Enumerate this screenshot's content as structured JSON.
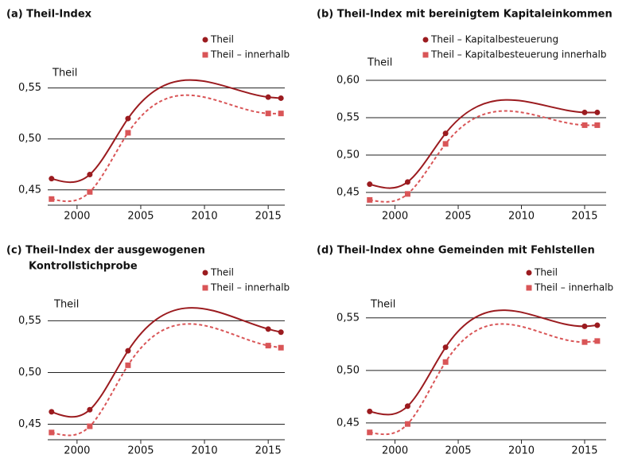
{
  "chart_data": [
    {
      "type": "line",
      "title": "(a) Theil-Index",
      "ylabel": "Theil",
      "x": [
        1998,
        2001,
        2004,
        2015,
        2016
      ],
      "xlim": [
        1997.7,
        2016.3
      ],
      "xticks": [
        2000,
        2005,
        2010,
        2015
      ],
      "ylim": [
        0.435,
        0.57
      ],
      "yticks": [
        {
          "value": 0.45,
          "label": "0,45"
        },
        {
          "value": 0.5,
          "label": "0,50"
        },
        {
          "value": 0.55,
          "label": "0,55"
        }
      ],
      "grid": true,
      "series": [
        {
          "name": "Theil",
          "color": "#9b1b1f",
          "values": [
            0.461,
            0.465,
            0.52,
            0.541,
            0.54
          ]
        },
        {
          "name": "Theil – innerhalb",
          "color": "#d95557",
          "values": [
            0.441,
            0.448,
            0.506,
            0.525,
            0.525
          ]
        }
      ]
    },
    {
      "type": "line",
      "title": "(b) Theil-Index mit bereinigtem Kapitaleinkommen",
      "ylabel": "Theil",
      "x": [
        1998,
        2001,
        2004,
        2015,
        2016
      ],
      "xlim": [
        1997.7,
        2016.7
      ],
      "xticks": [
        2000,
        2005,
        2010,
        2015
      ],
      "ylim": [
        0.433,
        0.617
      ],
      "yticks": [
        {
          "value": 0.45,
          "label": "0,45"
        },
        {
          "value": 0.5,
          "label": "0,50"
        },
        {
          "value": 0.55,
          "label": "0,55"
        },
        {
          "value": 0.6,
          "label": "0,60"
        }
      ],
      "grid": true,
      "series": [
        {
          "name": "Theil – Kapitalbesteuerung",
          "color": "#9b1b1f",
          "values": [
            0.461,
            0.464,
            0.529,
            0.557,
            0.557
          ]
        },
        {
          "name": "Theil – Kapitalbesteuerung innerhalb",
          "color": "#d95557",
          "values": [
            0.44,
            0.448,
            0.515,
            0.54,
            0.54
          ]
        }
      ]
    },
    {
      "type": "line",
      "title": [
        "(c) Theil-Index der ausgewogenen",
        "Kontrollstichprobe"
      ],
      "ylabel": "Theil",
      "x": [
        1998,
        2001,
        2004,
        2015,
        2016
      ],
      "xlim": [
        1997.7,
        2016.3
      ],
      "xticks": [
        2000,
        2005,
        2010,
        2015
      ],
      "ylim": [
        0.435,
        0.568
      ],
      "yticks": [
        {
          "value": 0.45,
          "label": "0,45"
        },
        {
          "value": 0.5,
          "label": "0,50"
        },
        {
          "value": 0.55,
          "label": "0,55"
        }
      ],
      "grid": true,
      "series": [
        {
          "name": "Theil",
          "color": "#9b1b1f",
          "values": [
            0.462,
            0.464,
            0.521,
            0.542,
            0.539
          ]
        },
        {
          "name": "Theil – innerhalb",
          "color": "#d95557",
          "values": [
            0.442,
            0.448,
            0.507,
            0.526,
            0.524
          ]
        }
      ]
    },
    {
      "type": "line",
      "title": "(d) Theil-Index ohne Gemeinden mit Fehlstellen",
      "ylabel": "Theil",
      "x": [
        1998,
        2001,
        2004,
        2015,
        2016
      ],
      "xlim": [
        1997.7,
        2016.7
      ],
      "xticks": [
        2000,
        2005,
        2010,
        2015
      ],
      "ylim": [
        0.434,
        0.565
      ],
      "yticks": [
        {
          "value": 0.45,
          "label": "0,45"
        },
        {
          "value": 0.5,
          "label": "0,50"
        },
        {
          "value": 0.55,
          "label": "0,55"
        }
      ],
      "grid": true,
      "series": [
        {
          "name": "Theil",
          "color": "#9b1b1f",
          "values": [
            0.461,
            0.466,
            0.522,
            0.542,
            0.543
          ]
        },
        {
          "name": "Theil – innerhalb",
          "color": "#d95557",
          "values": [
            0.441,
            0.449,
            0.508,
            0.527,
            0.528
          ]
        }
      ]
    }
  ]
}
